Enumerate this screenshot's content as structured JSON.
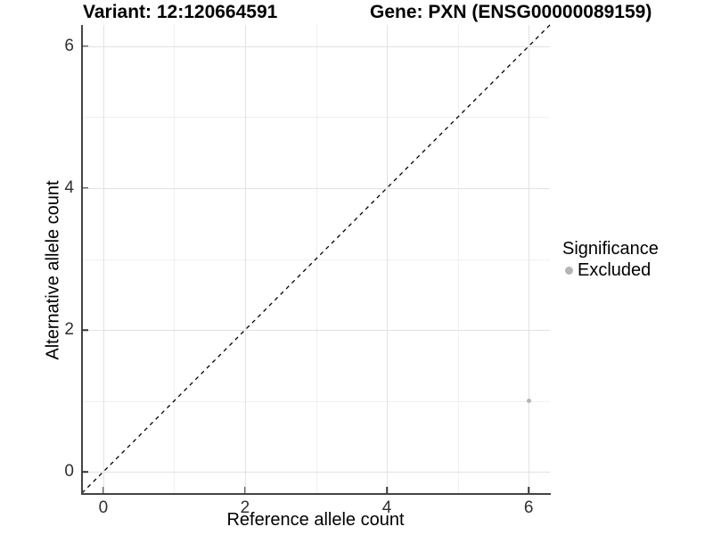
{
  "titles": {
    "variant": "Variant: 12:120664591",
    "gene": "Gene: PXN (ENSG00000089159)"
  },
  "chart_data": {
    "type": "scatter",
    "xlabel": "Reference allele count",
    "ylabel": "Alternative allele count",
    "xlim": [
      -0.3,
      6.3
    ],
    "ylim": [
      -0.3,
      6.3
    ],
    "x_ticks": [
      0,
      2,
      4,
      6
    ],
    "y_ticks": [
      0,
      2,
      4,
      6
    ],
    "x_minor_ticks": [
      1,
      3,
      5
    ],
    "y_minor_ticks": [
      1,
      3,
      5
    ],
    "grid": "on",
    "points": [
      {
        "x": 6,
        "y": 1,
        "series": "Excluded"
      }
    ],
    "identity_line": {
      "type": "dashed",
      "from": [
        -0.3,
        -0.3
      ],
      "to": [
        6.3,
        6.3
      ],
      "color": "#000000"
    },
    "legend": {
      "title": "Significance",
      "position": "right",
      "items": [
        {
          "label": "Excluded",
          "color": "#b5b5b5"
        }
      ]
    }
  },
  "colors": {
    "background": "#ffffff",
    "grid_major": "#e2e2e2",
    "grid_minor": "#f0f0f0",
    "axis": "#444444",
    "point": "#b5b5b5"
  }
}
